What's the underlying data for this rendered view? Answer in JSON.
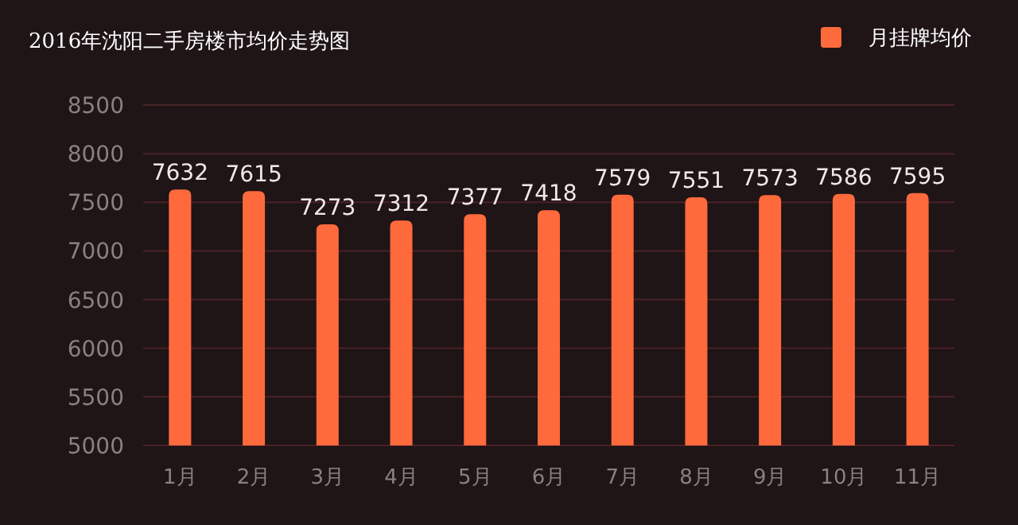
{
  "chart_data": {
    "type": "bar",
    "title": "2016年沈阳二手房楼市均价走势图",
    "categories": [
      "1月",
      "2月",
      "3月",
      "4月",
      "5月",
      "6月",
      "7月",
      "8月",
      "9月",
      "10月",
      "11月"
    ],
    "series": [
      {
        "name": "月挂牌均价",
        "color": "#ff6a3c",
        "values": [
          7632,
          7615,
          7273,
          7312,
          7377,
          7418,
          7579,
          7551,
          7573,
          7586,
          7595
        ]
      }
    ],
    "ylim": [
      5000,
      8500
    ],
    "yticks": [
      5000,
      5500,
      6000,
      6500,
      7000,
      7500,
      8000,
      8500
    ],
    "grid": "y",
    "legend": "top right",
    "data_labels": true
  }
}
